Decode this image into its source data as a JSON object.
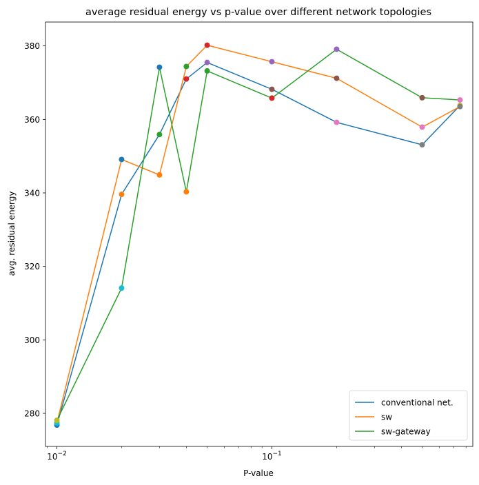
{
  "chart_data": {
    "type": "line",
    "title": "average residual energy vs p-value over different network topologies",
    "xlabel": "P-value",
    "ylabel": "avg. residual energy",
    "xscale": "log",
    "xlim": [
      0.00885,
      0.86
    ],
    "ylim": [
      271,
      386.5
    ],
    "xticks": [
      {
        "value": 0.01,
        "base": "10",
        "exp": "−2"
      },
      {
        "value": 0.1,
        "base": "10",
        "exp": "−1"
      }
    ],
    "yticks": [
      280,
      300,
      320,
      340,
      360,
      380
    ],
    "grid": false,
    "legend_position": "lower-right",
    "x": [
      0.01,
      0.02,
      0.03,
      0.04,
      0.05,
      0.1,
      0.2,
      0.5,
      0.75
    ],
    "series": [
      {
        "name": "conventional net.",
        "color": "#1f77b4",
        "values": [
          276.8,
          339.6,
          355.9,
          371.0,
          375.5,
          368.2,
          359.2,
          353.1,
          363.8
        ]
      },
      {
        "name": "sw",
        "color": "#ff7f0e",
        "values": [
          277.4,
          349.1,
          344.9,
          374.4,
          380.2,
          375.7,
          371.2,
          357.9,
          363.5
        ]
      },
      {
        "name": "sw-gateway",
        "color": "#2ca02c",
        "values": [
          278.1,
          314.1,
          374.2,
          340.3,
          373.2,
          365.8,
          379.1,
          365.9,
          365.3
        ]
      }
    ],
    "marker_colors": [
      "#1f77b4",
      "#ff7f0e",
      "#2ca02c",
      "#d62728",
      "#9467bd",
      "#8c564b",
      "#e377c2",
      "#7f7f7f",
      "#bcbd22",
      "#17becf"
    ]
  }
}
